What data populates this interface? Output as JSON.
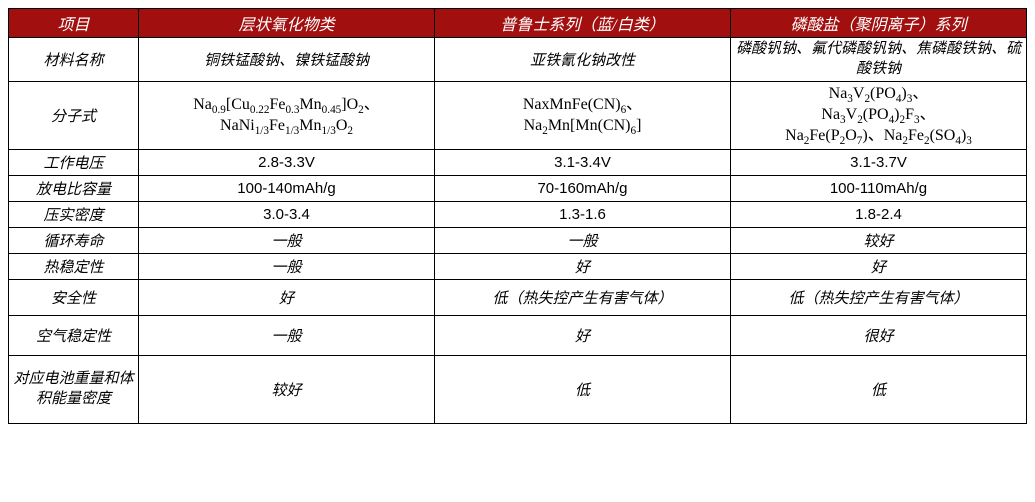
{
  "table": {
    "header_bg": "#a20f0f",
    "header_fg": "#ffffff",
    "border_color": "#000000",
    "cell_bg": "#ffffff",
    "cell_fg": "#000000",
    "font_size_header": 16,
    "font_size_cell": 15,
    "headers": [
      "项目",
      "层状氧化物类",
      "普鲁士系列（蓝/白类）",
      "磷酸盐（聚阴离子）系列"
    ],
    "rows": [
      {
        "label": "材料名称",
        "col1": "铜铁锰酸钠、镍铁锰酸钠",
        "col2": "亚铁氰化钠改性",
        "col3": "磷酸钒钠、氟代磷酸钒钠、焦磷酸铁钠、硫酸铁钠",
        "italic": true
      },
      {
        "label": "分子式",
        "col1_html": "Na<sub>0.9</sub>[Cu<sub>0.22</sub>Fe<sub>0.3</sub>Mn<sub>0.45</sub>]O<sub>2</sub>、<br>NaNi<sub>1/3</sub>Fe<sub>1/3</sub>Mn<sub>1/3</sub>O<sub>2</sub>",
        "col2_html": "NaxMnFe(CN)<sub>6</sub>、<br>Na<sub>2</sub>Mn[Mn(CN)<sub>6</sub>]",
        "col3_html": "Na<sub>3</sub>V<sub>2</sub>(PO<sub>4</sub>)<sub>3</sub>、<br>Na<sub>3</sub>V<sub>2</sub>(PO<sub>4</sub>)<sub>2</sub>F<sub>3</sub>、<br>Na<sub>2</sub>Fe(P<sub>2</sub>O<sub>7</sub>)、Na<sub>2</sub>Fe<sub>2</sub>(SO<sub>4</sub>)<sub>3</sub>",
        "formula": true
      },
      {
        "label": "工作电压",
        "col1": "2.8-3.3V",
        "col2": "3.1-3.4V",
        "col3": "3.1-3.7V"
      },
      {
        "label": "放电比容量",
        "col1": "100-140mAh/g",
        "col2": "70-160mAh/g",
        "col3": "100-110mAh/g"
      },
      {
        "label": "压实密度",
        "col1": "3.0-3.4",
        "col2": "1.3-1.6",
        "col3": "1.8-2.4"
      },
      {
        "label": "循环寿命",
        "col1": "一般",
        "col2": "一般",
        "col3": "较好",
        "italic": true
      },
      {
        "label": "热稳定性",
        "col1": "一般",
        "col2": "好",
        "col3": "好",
        "italic": true
      },
      {
        "label": "安全性",
        "col1": "好",
        "col2": "低（热失控产生有害气体）",
        "col3": "低（热失控产生有害气体）",
        "italic": true
      },
      {
        "label": "空气稳定性",
        "col1": "一般",
        "col2": "好",
        "col3": "很好",
        "italic": true
      },
      {
        "label": "对应电池重量和体积能量密度",
        "col1": "较好",
        "col2": "低",
        "col3": "低",
        "italic": true
      }
    ]
  }
}
